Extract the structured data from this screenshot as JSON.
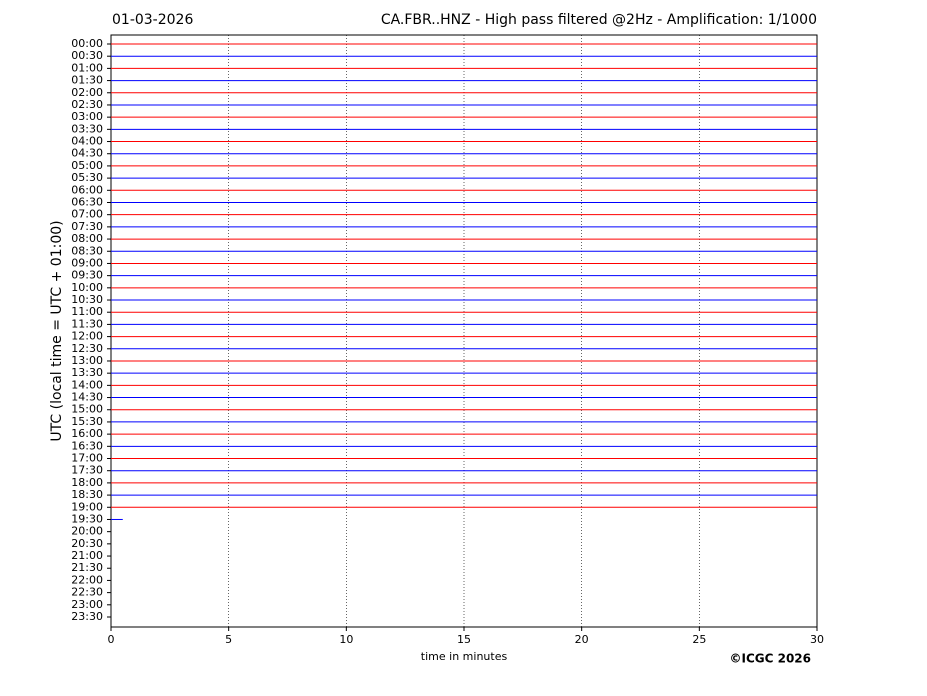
{
  "chart_data": {
    "type": "helicorder",
    "date": "01-03-2026",
    "title": "CA.FBR..HNZ - High pass filtered @2Hz - Amplification: 1/1000",
    "xlabel": "time in minutes",
    "ylabel": "UTC (local time = UTC + 01:00)",
    "credit": "©ICGC 2026",
    "categories": [
      "00:00",
      "00:30",
      "01:00",
      "01:30",
      "02:00",
      "02:30",
      "03:00",
      "03:30",
      "04:00",
      "04:30",
      "05:00",
      "05:30",
      "06:00",
      "06:30",
      "07:00",
      "07:30",
      "08:00",
      "08:30",
      "09:00",
      "09:30",
      "10:00",
      "10:30",
      "11:00",
      "11:30",
      "12:00",
      "12:30",
      "13:00",
      "13:30",
      "14:00",
      "14:30",
      "15:00",
      "15:30",
      "16:00",
      "16:30",
      "17:00",
      "17:30",
      "18:00",
      "18:30",
      "19:00",
      "19:30",
      "20:00",
      "20:30",
      "21:00",
      "21:30",
      "22:00",
      "22:30",
      "23:00",
      "23:30"
    ],
    "values": [
      30,
      30,
      30,
      30,
      30,
      30,
      30,
      30,
      30,
      30,
      30,
      30,
      30,
      30,
      30,
      30,
      30,
      30,
      30,
      30,
      30,
      30,
      30,
      30,
      30,
      30,
      30,
      30,
      30,
      30,
      30,
      30,
      30,
      30,
      30,
      30,
      30,
      30,
      30,
      0.5,
      null,
      null,
      null,
      null,
      null,
      null,
      null,
      null
    ],
    "colors": [
      "#ff0000",
      "#0000ff"
    ],
    "xlim": [
      0,
      30
    ],
    "xticks": [
      0,
      5,
      10,
      15,
      20,
      25,
      30
    ],
    "grid": true
  }
}
